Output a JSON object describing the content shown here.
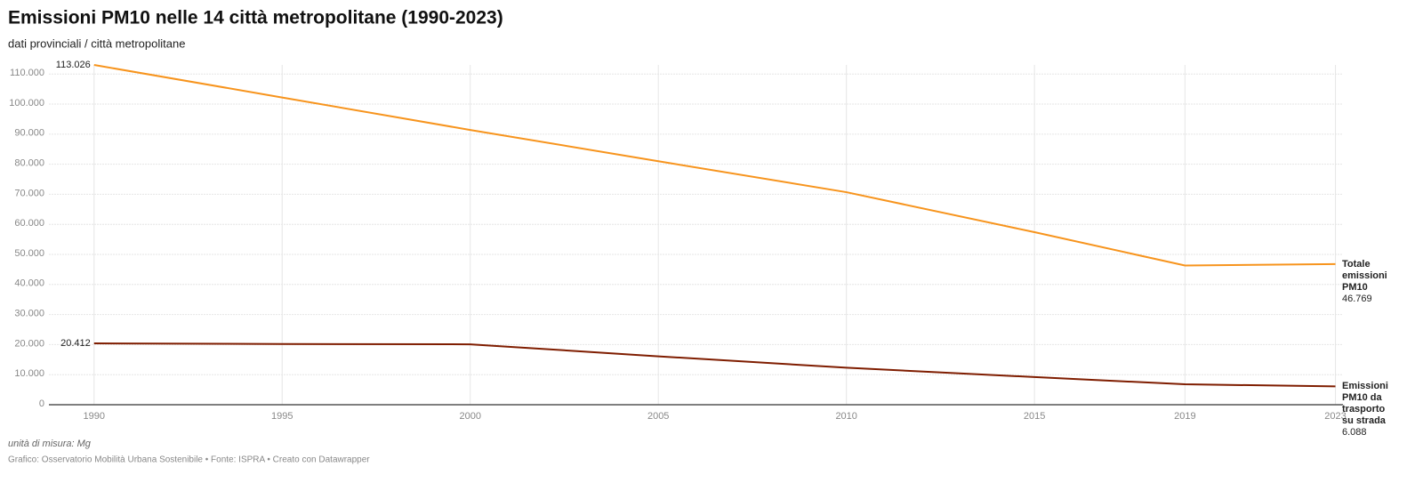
{
  "chart_data": {
    "type": "line",
    "title": "Emissioni PM10 nelle 14 città metropolitane (1990-2023)",
    "subtitle": "dati provinciali / città metropolitane",
    "notes": "unità di misura: Mg",
    "source": "Grafico: Osservatorio Mobilità Urbana Sostenibile • Fonte: ISPRA • Creato con Datawrapper",
    "x": [
      1990,
      1995,
      2000,
      2005,
      2010,
      2015,
      2019,
      2023
    ],
    "series": [
      {
        "name": "Totale emissioni PM10",
        "color": "#f7941d",
        "values": [
          113026,
          102200,
          91400,
          81000,
          70700,
          57400,
          46300,
          46769
        ],
        "value_labels": [
          "113.026",
          null,
          null,
          null,
          null,
          null,
          null,
          "46.769"
        ]
      },
      {
        "name": "Emissioni PM10 da trasporto su strada",
        "color": "#7f1d00",
        "values": [
          20412,
          20200,
          20100,
          16100,
          12300,
          9200,
          6800,
          6088
        ],
        "value_labels": [
          "20.412",
          null,
          null,
          null,
          null,
          null,
          null,
          "6.088"
        ]
      }
    ],
    "xlim": [
      1988.8,
      2023.2
    ],
    "xticks": [
      1990,
      1995,
      2000,
      2005,
      2010,
      2015,
      2019,
      2023
    ],
    "ylim": [
      0,
      113026
    ],
    "yticks": [
      0,
      {
        "value": 10000,
        "label": "10.000"
      },
      {
        "value": 20000,
        "label": "20.000"
      },
      {
        "value": 30000,
        "label": "30.000"
      },
      {
        "value": 40000,
        "label": "40.000"
      },
      {
        "value": 50000,
        "label": "50.000"
      },
      {
        "value": 60000,
        "label": "60.000"
      },
      {
        "value": 70000,
        "label": "70.000"
      },
      {
        "value": 80000,
        "label": "80.000"
      },
      {
        "value": 90000,
        "label": "90.000"
      },
      {
        "value": 100000,
        "label": "100.000"
      },
      {
        "value": 110000,
        "label": "110.000"
      }
    ],
    "grid": true
  }
}
